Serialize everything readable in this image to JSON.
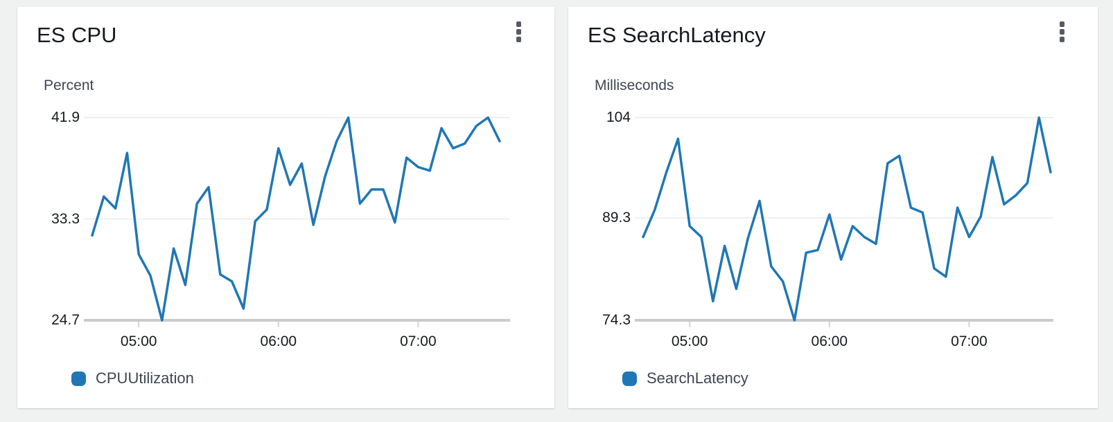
{
  "page": {
    "background_color": "#f0f1f1",
    "card_background": "#ffffff"
  },
  "widgets": [
    {
      "title": "ES CPU",
      "unit_label": "Percent",
      "menu_icon": "vertical-ellipsis-icon",
      "legend": {
        "label": "CPUUtilization",
        "color": "#1f77b4"
      }
    },
    {
      "title": "ES SearchLatency",
      "unit_label": "Milliseconds",
      "menu_icon": "vertical-ellipsis-icon",
      "legend": {
        "label": "SearchLatency",
        "color": "#1f77b4"
      }
    }
  ],
  "chart_data": [
    {
      "type": "line",
      "title": "ES CPU",
      "ylabel": "Percent",
      "ylim": [
        24.7,
        41.9
      ],
      "y_tick_values": [
        41.9,
        33.3,
        24.7
      ],
      "y_tick_labels": [
        "41.9",
        "33.3",
        "24.7"
      ],
      "x_tick_labels": [
        "05:00",
        "06:00",
        "07:00"
      ],
      "grid": "horizontal-only",
      "legend_position": "bottom-left",
      "line_color": "#1f77b4",
      "axis_color": "#c9cbcc",
      "gridline_color": "#e9eaea",
      "x": [
        "04:40",
        "04:45",
        "04:50",
        "04:55",
        "05:00",
        "05:05",
        "05:10",
        "05:15",
        "05:20",
        "05:25",
        "05:30",
        "05:35",
        "05:40",
        "05:45",
        "05:50",
        "05:55",
        "06:00",
        "06:05",
        "06:10",
        "06:15",
        "06:20",
        "06:25",
        "06:30",
        "06:35",
        "06:40",
        "06:45",
        "06:50",
        "06:55",
        "07:00",
        "07:05",
        "07:10",
        "07:15",
        "07:20",
        "07:25",
        "07:30",
        "07:35"
      ],
      "series": [
        {
          "name": "CPUUtilization",
          "values": [
            31.9,
            35.2,
            34.2,
            38.9,
            30.3,
            28.5,
            24.7,
            30.8,
            27.7,
            34.6,
            36.0,
            28.6,
            28.0,
            25.7,
            33.1,
            34.1,
            39.3,
            36.2,
            38.0,
            32.8,
            36.9,
            39.9,
            41.9,
            34.6,
            35.8,
            35.8,
            33.0,
            38.5,
            37.7,
            37.4,
            41.0,
            39.3,
            39.7,
            41.2,
            41.9,
            39.9
          ]
        }
      ]
    },
    {
      "type": "line",
      "title": "ES SearchLatency",
      "ylabel": "Milliseconds",
      "ylim": [
        74.3,
        104
      ],
      "y_tick_values": [
        104,
        89.3,
        74.3
      ],
      "y_tick_labels": [
        "104",
        "89.3",
        "74.3"
      ],
      "x_tick_labels": [
        "05:00",
        "06:00",
        "07:00"
      ],
      "grid": "horizontal-only",
      "legend_position": "bottom-left",
      "line_color": "#1f77b4",
      "axis_color": "#c9cbcc",
      "gridline_color": "#e9eaea",
      "x": [
        "04:40",
        "04:45",
        "04:50",
        "04:55",
        "05:00",
        "05:05",
        "05:10",
        "05:15",
        "05:20",
        "05:25",
        "05:30",
        "05:35",
        "05:40",
        "05:45",
        "05:50",
        "05:55",
        "06:00",
        "06:05",
        "06:10",
        "06:15",
        "06:20",
        "06:25",
        "06:30",
        "06:35",
        "06:40",
        "06:45",
        "06:50",
        "06:55",
        "07:00",
        "07:05",
        "07:10",
        "07:15",
        "07:20",
        "07:25",
        "07:30",
        "07:35"
      ],
      "series": [
        {
          "name": "SearchLatency",
          "values": [
            86.5,
            90.5,
            96.0,
            100.9,
            88.1,
            86.5,
            77.1,
            85.2,
            78.9,
            86.3,
            91.8,
            82.2,
            80.0,
            74.3,
            84.2,
            84.6,
            89.8,
            83.2,
            88.1,
            86.5,
            85.5,
            97.3,
            98.4,
            90.8,
            90.1,
            81.9,
            80.7,
            90.8,
            86.5,
            89.5,
            98.2,
            91.3,
            92.6,
            94.4,
            104.0,
            96.0
          ]
        }
      ]
    }
  ]
}
